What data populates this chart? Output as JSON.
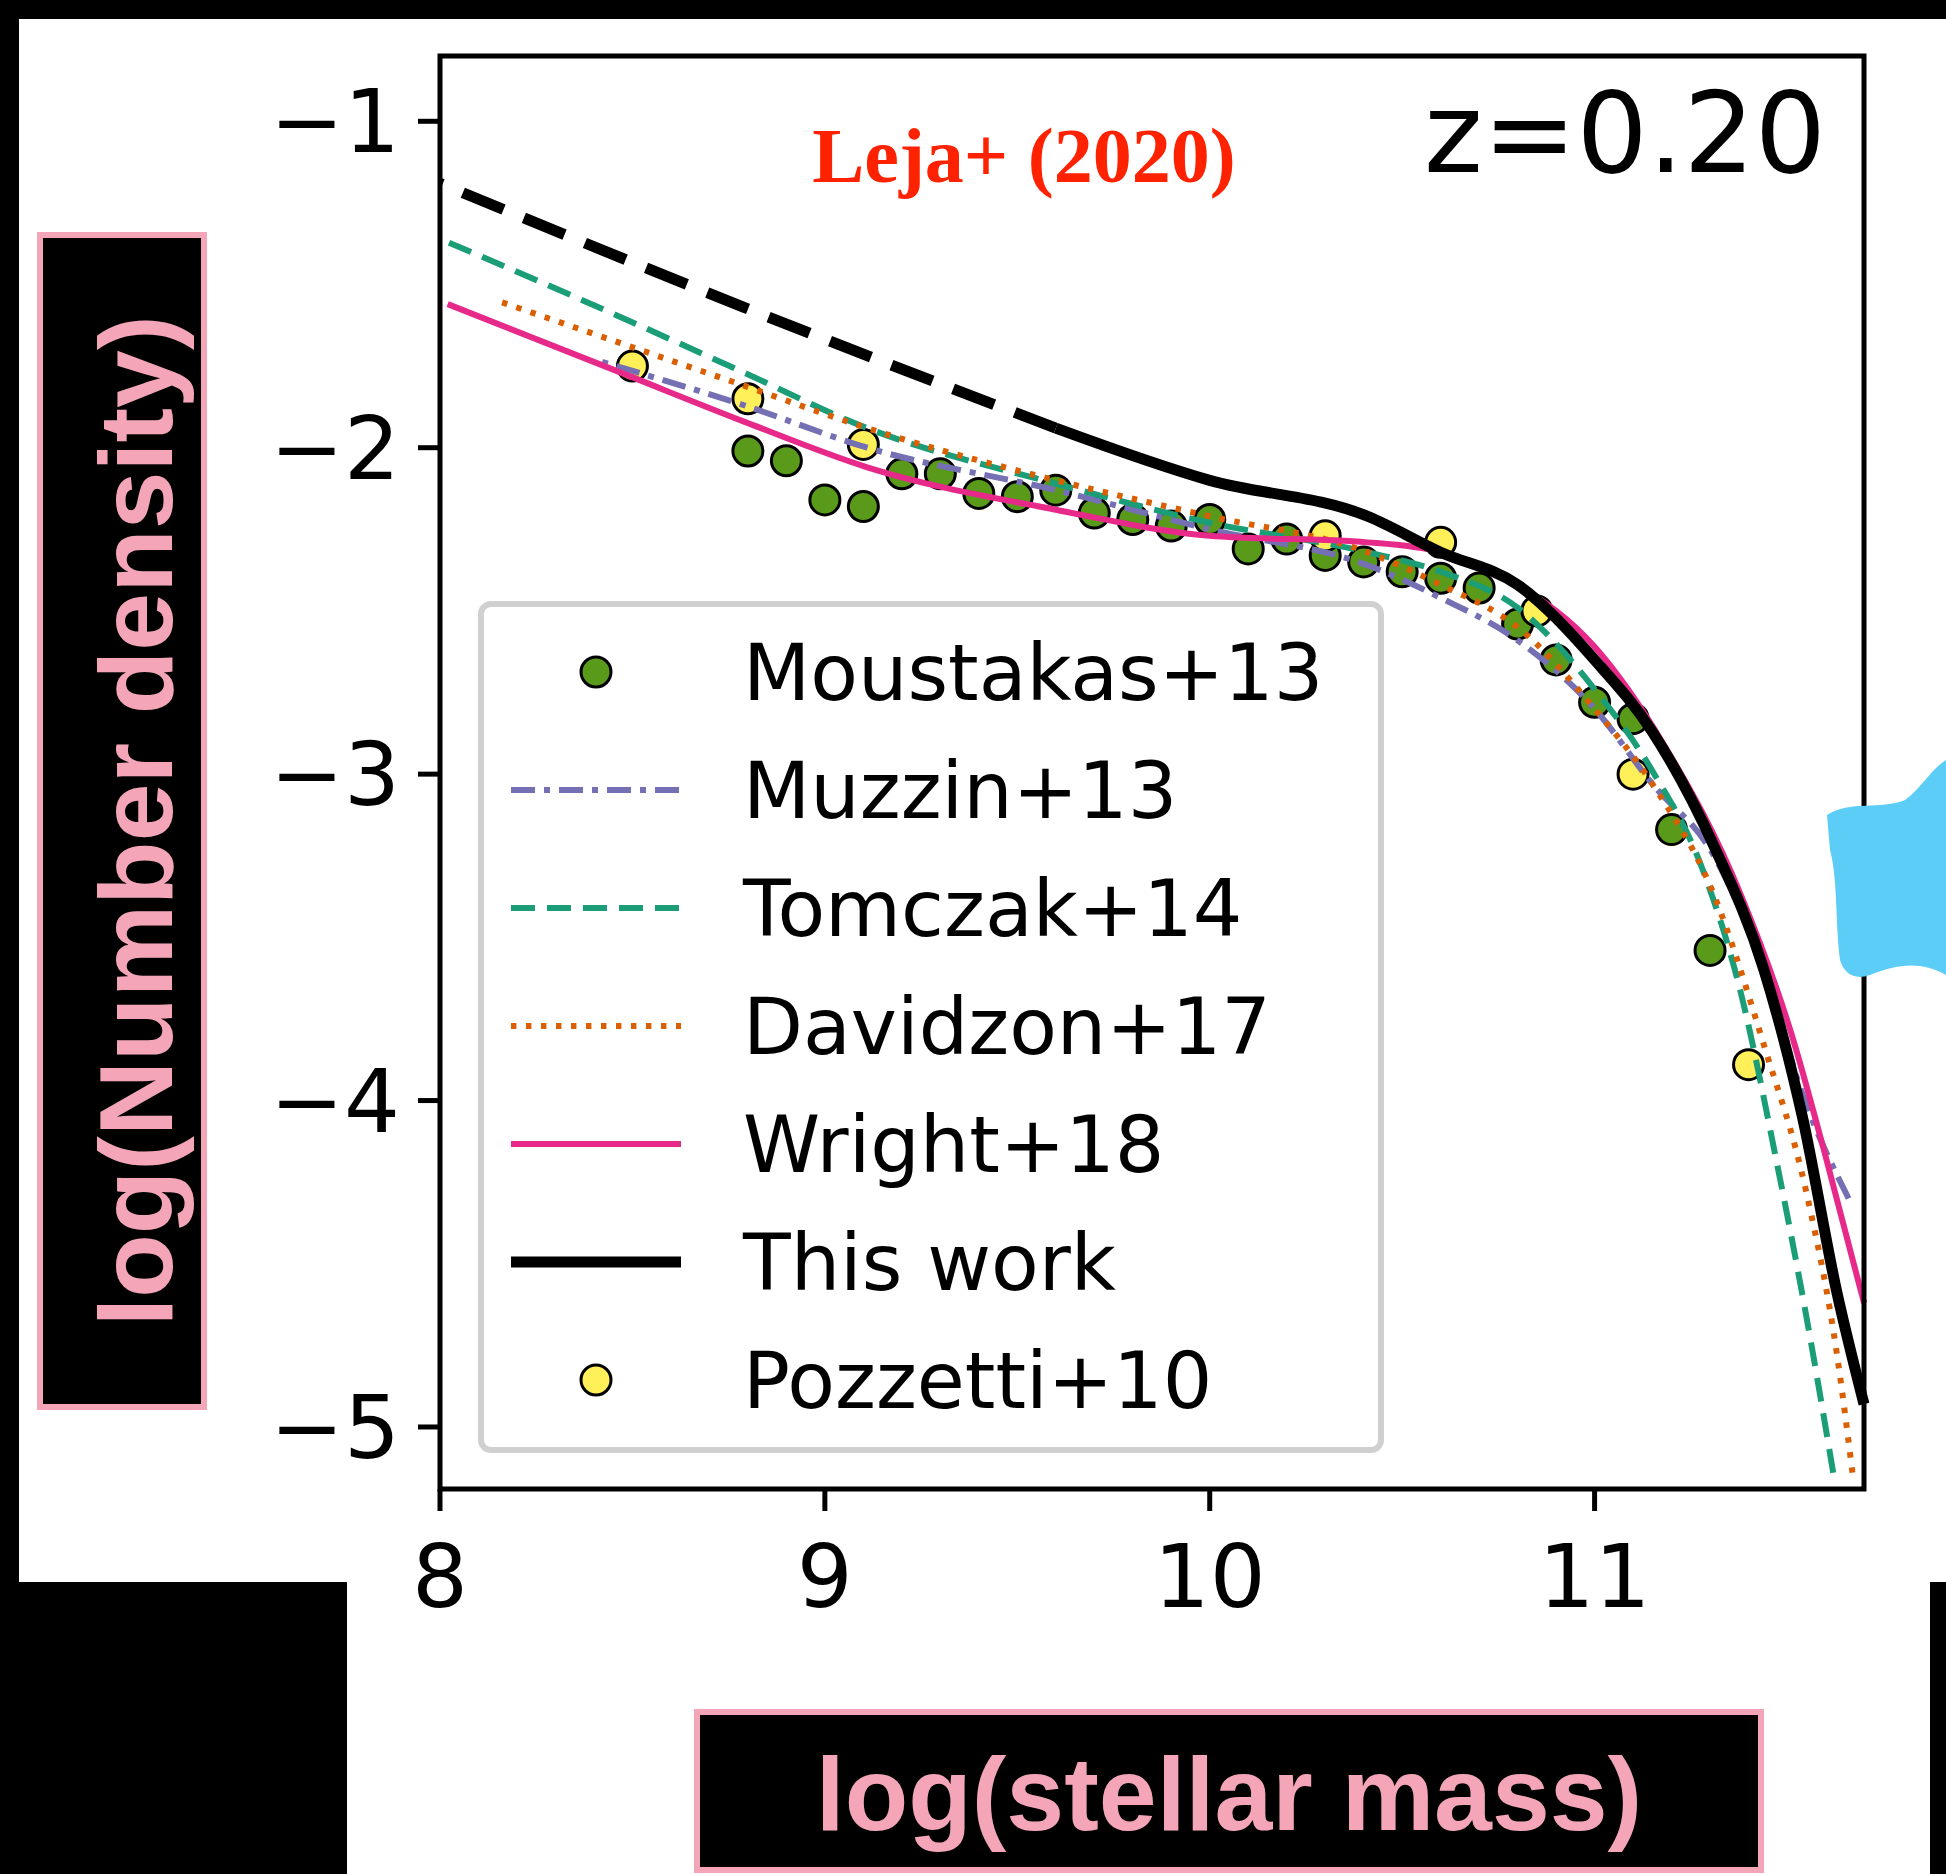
{
  "chart_data": {
    "type": "line",
    "xlabel": "log(stellar mass)",
    "ylabel": "log(Number density)",
    "annotations": [
      "Leja+ (2020)",
      "z=0.20"
    ],
    "xlim": [
      8,
      11.7
    ],
    "ylim": [
      -5.19,
      -0.8
    ],
    "xticks": [
      8,
      9,
      10,
      11
    ],
    "yticks": [
      {
        "value": -1,
        "label": "−1"
      },
      {
        "value": -2,
        "label": "−2"
      },
      {
        "value": -3,
        "label": "−3"
      },
      {
        "value": -4,
        "label": "−4"
      },
      {
        "value": -5,
        "label": "−5"
      }
    ],
    "grid": false,
    "legend": "bottom left",
    "series": [
      {
        "name": "Moustakas+13",
        "type": "scatter",
        "marker": "circle",
        "color": "#5a9a1a",
        "x": [
          8.8,
          8.9,
          9.0,
          9.1,
          9.2,
          9.3,
          9.4,
          9.5,
          9.6,
          9.7,
          9.8,
          9.9,
          10.0,
          10.1,
          10.2,
          10.3,
          10.4,
          10.5,
          10.6,
          10.7,
          10.8,
          10.9,
          11.0,
          11.1,
          11.2,
          11.3
        ],
        "values": [
          -2.01,
          -2.04,
          -2.16,
          -2.18,
          -2.08,
          -2.08,
          -2.14,
          -2.15,
          -2.13,
          -2.2,
          -2.22,
          -2.24,
          -2.22,
          -2.31,
          -2.28,
          -2.33,
          -2.35,
          -2.38,
          -2.4,
          -2.43,
          -2.54,
          -2.65,
          -2.78,
          -2.83,
          -3.17,
          -3.54
        ]
      },
      {
        "name": "Muzzin+13",
        "line_style": "dashdot",
        "color": "#7570b3",
        "x": [
          8.4,
          8.79,
          9.11,
          9.6,
          10,
          10.41,
          10.6,
          10.8,
          11,
          11.15,
          11.31,
          11.44,
          11.54,
          11.66
        ],
        "values": [
          -1.73,
          -1.87,
          -2.0,
          -2.13,
          -2.25,
          -2.36,
          -2.46,
          -2.59,
          -2.8,
          -3.03,
          -3.25,
          -3.6,
          -3.98,
          -4.3
        ]
      },
      {
        "name": "Tomczak+14",
        "line_style": "dashed",
        "color": "#1b9e77",
        "x": [
          8,
          8.47,
          8.79,
          9.11,
          9.6,
          10,
          10.41,
          10.6,
          10.8,
          11,
          11.15,
          11.28,
          11.38,
          11.47,
          11.55,
          11.62
        ],
        "values": [
          -1.36,
          -1.6,
          -1.77,
          -1.94,
          -2.11,
          -2.23,
          -2.32,
          -2.38,
          -2.49,
          -2.74,
          -2.99,
          -3.29,
          -3.67,
          -4.17,
          -4.66,
          -5.14
        ]
      },
      {
        "name": "Davidzon+17",
        "line_style": "dotted",
        "color": "#d95f02",
        "x": [
          8.15,
          8.47,
          8.79,
          9.11,
          9.6,
          10,
          10.41,
          10.6,
          10.8,
          11,
          11.15,
          11.31,
          11.44,
          11.55,
          11.63,
          11.67
        ],
        "values": [
          -1.55,
          -1.68,
          -1.81,
          -1.94,
          -2.1,
          -2.21,
          -2.32,
          -2.42,
          -2.55,
          -2.8,
          -3.03,
          -3.37,
          -3.83,
          -4.28,
          -4.78,
          -5.14
        ]
      },
      {
        "name": "Wright+18",
        "line_style": "solid",
        "color": "#e7298a",
        "x": [
          8.02,
          8.47,
          8.79,
          9.11,
          9.6,
          10,
          10.41,
          10.6,
          10.8,
          11,
          11.18,
          11.38,
          11.51,
          11.6,
          11.7
        ],
        "values": [
          -1.56,
          -1.77,
          -1.92,
          -2.06,
          -2.19,
          -2.27,
          -2.29,
          -2.32,
          -2.42,
          -2.61,
          -2.91,
          -3.37,
          -3.79,
          -4.17,
          -4.62
        ]
      },
      {
        "name": "This work",
        "line_style": "solid",
        "color": "#000000",
        "x": [
          9.6,
          10,
          10.41,
          10.6,
          10.8,
          11,
          11.15,
          11.31,
          11.44,
          11.54,
          11.63,
          11.7
        ],
        "values": [
          -1.94,
          -2.1,
          -2.21,
          -2.32,
          -2.42,
          -2.65,
          -2.87,
          -3.22,
          -3.6,
          -4.05,
          -4.59,
          -4.93
        ]
      },
      {
        "name": "Pozzetti+10",
        "type": "scatter",
        "marker": "circle",
        "color": "#fff05a",
        "x": [
          8.5,
          8.8,
          9.1,
          10.3,
          10.6,
          10.85,
          11.1,
          11.4
        ],
        "values": [
          -1.75,
          -1.85,
          -1.99,
          -2.27,
          -2.29,
          -2.5,
          -3.0,
          -3.89
        ]
      },
      {
        "line_style": "dashed",
        "color": "#000000",
        "x": [
          8,
          8.79,
          9.6
        ],
        "values": [
          -1.19,
          -1.57,
          -1.94
        ]
      }
    ]
  }
}
